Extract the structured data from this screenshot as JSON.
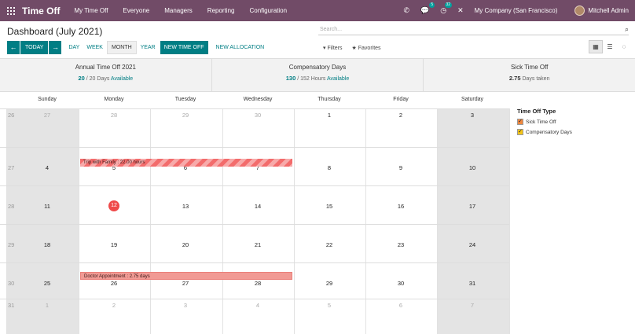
{
  "navbar": {
    "app_name": "Time Off",
    "menu": [
      "My Time Off",
      "Everyone",
      "Managers",
      "Reporting",
      "Configuration"
    ],
    "phone_icon": "phone-icon",
    "messages_badge": "5",
    "activities_badge": "32",
    "company": "My Company (San Francisco)",
    "user": "Mitchell Admin"
  },
  "control": {
    "title": "Dashboard (July 2021)",
    "search_placeholder": "Search...",
    "prev_icon": "←",
    "next_icon": "→",
    "today_label": "TODAY",
    "scales": [
      "DAY",
      "WEEK",
      "MONTH",
      "YEAR"
    ],
    "active_scale": "MONTH",
    "new_time_off_label": "NEW TIME OFF",
    "new_allocation_label": "NEW ALLOCATION",
    "filters_label": "Filters",
    "favorites_label": "Favorites"
  },
  "summary": [
    {
      "title": "Annual Time Off 2021",
      "value": "20",
      "total": " / 20 Days ",
      "status": "Available"
    },
    {
      "title": "Compensatory Days",
      "value": "130",
      "total": " / 152 Hours ",
      "status": "Available"
    },
    {
      "title": "Sick Time Off",
      "value": "2.75",
      "total": " Days taken",
      "status": ""
    }
  ],
  "calendar": {
    "day_headers": [
      "Sunday",
      "Monday",
      "Tuesday",
      "Wednesday",
      "Thursday",
      "Friday",
      "Saturday"
    ],
    "weeks": [
      {
        "num": "26",
        "days": [
          "27",
          "28",
          "29",
          "30",
          "1",
          "2",
          "3"
        ]
      },
      {
        "num": "27",
        "days": [
          "4",
          "5",
          "6",
          "7",
          "8",
          "9",
          "10"
        ]
      },
      {
        "num": "28",
        "days": [
          "11",
          "12",
          "13",
          "14",
          "15",
          "16",
          "17"
        ]
      },
      {
        "num": "29",
        "days": [
          "18",
          "19",
          "20",
          "21",
          "22",
          "23",
          "24"
        ]
      },
      {
        "num": "30",
        "days": [
          "25",
          "26",
          "27",
          "28",
          "29",
          "30",
          "31"
        ]
      },
      {
        "num": "31",
        "days": [
          "1",
          "2",
          "3",
          "4",
          "5",
          "6",
          "7"
        ]
      }
    ],
    "today": "12",
    "events": [
      {
        "label": "Trip with Family : 22.00 hours"
      },
      {
        "label": "Doctor Appointment : 2.75 days"
      }
    ]
  },
  "side_panel": {
    "title": "Time Off Type",
    "items": [
      {
        "label": "Sick Time Off",
        "color": "#f0883e"
      },
      {
        "label": "Compensatory Days",
        "color": "#f5c518"
      }
    ]
  },
  "colors": {
    "navbar": "#714B67",
    "primary": "#017E84",
    "today": "#ef4a4a",
    "event": "#f36c6c"
  }
}
